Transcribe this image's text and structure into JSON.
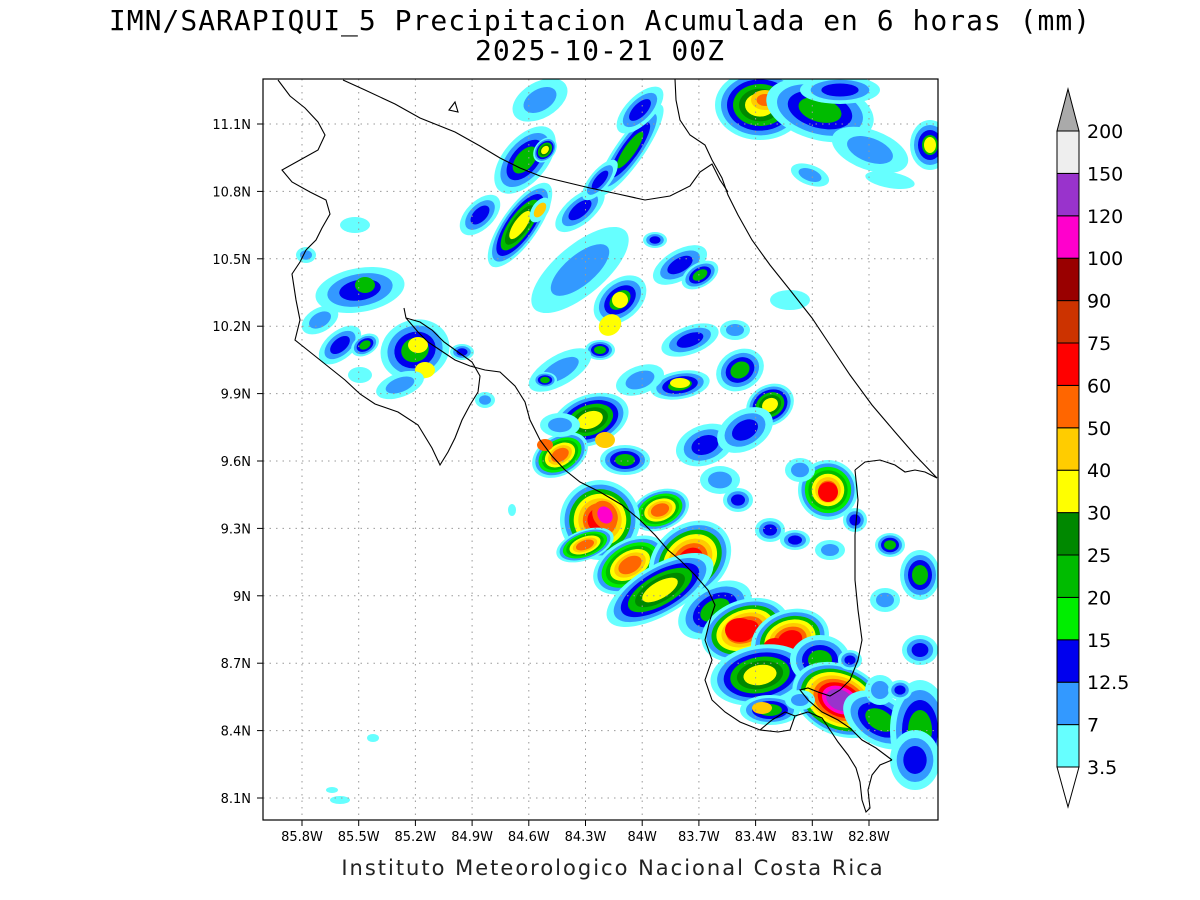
{
  "title": {
    "line1": "IMN/SARAPIQUI_5 Precipitacion Acumulada en 6 horas (mm)",
    "line2": "2025-10-21 00Z"
  },
  "footer": "Instituto Meteorologico Nacional Costa Rica",
  "axes": {
    "x_ticks": [
      "85.8W",
      "85.5W",
      "85.2W",
      "84.9W",
      "84.6W",
      "84.3W",
      "84W",
      "83.7W",
      "83.4W",
      "83.1W",
      "82.8W"
    ],
    "y_ticks": [
      "11.1N",
      "10.8N",
      "10.5N",
      "10.2N",
      "9.9N",
      "9.6N",
      "9.3N",
      "9N",
      "8.7N",
      "8.4N",
      "8.1N"
    ]
  },
  "legend": {
    "levels": [
      "3.5",
      "7",
      "12.5",
      "15",
      "20",
      "25",
      "30",
      "40",
      "50",
      "60",
      "75",
      "90",
      "100",
      "120",
      "150",
      "200"
    ],
    "colors": [
      "#ffffff",
      "#66ffff",
      "#3399ff",
      "#0000ee",
      "#00ee00",
      "#00bb00",
      "#008800",
      "#ffff00",
      "#ffcc00",
      "#ff6600",
      "#ff0000",
      "#cc3300",
      "#990000",
      "#ff00cc",
      "#9933cc",
      "#eeeeee",
      "#aaaaaa"
    ]
  },
  "colors": {
    "very_light": "#66ffff",
    "light": "#3399ff",
    "moderate": "#0000ee",
    "green_light": "#00ee00",
    "green": "#00bb00",
    "green_dark": "#008800",
    "yellow": "#ffff00",
    "gold": "#ffcc00",
    "orange": "#ff6600",
    "red": "#ff0000",
    "magenta": "#ff00cc",
    "purple": "#9933cc"
  }
}
